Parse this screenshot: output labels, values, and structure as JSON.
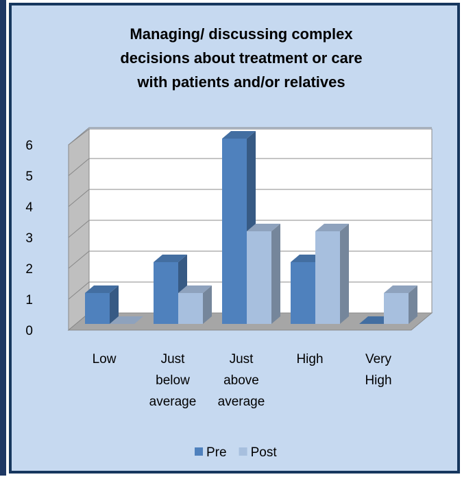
{
  "chart_data": {
    "type": "bar3d",
    "title": [
      "Managing/ discussing complex",
      "decisions about treatment or care",
      "with patients and/or relatives"
    ],
    "categories": [
      "Low",
      "Just below average",
      "Just above average",
      "High",
      "Very High"
    ],
    "series": [
      {
        "name": "Pre",
        "color": "#4f81bd",
        "values": [
          1,
          2,
          6,
          2,
          0
        ]
      },
      {
        "name": "Post",
        "color": "#a7bfde",
        "values": [
          0,
          1,
          3,
          3,
          1
        ]
      }
    ],
    "ylim": [
      0,
      6
    ],
    "yticks": [
      0,
      1,
      2,
      3,
      4,
      5,
      6
    ],
    "grid": true,
    "legend": "bottom"
  }
}
